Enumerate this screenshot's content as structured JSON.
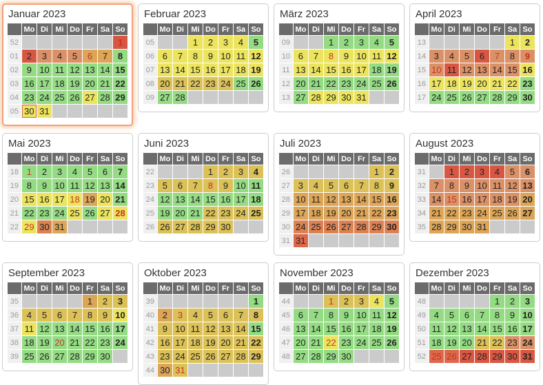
{
  "weekday_headers": [
    "Mo",
    "Di",
    "Mi",
    "Do",
    "Fr",
    "Sa",
    "So"
  ],
  "palette": {
    "g": "#94DB84",
    "y": "#ECE45E",
    "m": "#DBC158",
    "t": "#DCA557",
    "s": "#DB9168",
    "o": "#DB8152",
    "r2": "#DC684C",
    "r": "#D85743"
  },
  "palette_meaning": {
    "g": "green-level",
    "y": "yellow-level",
    "m": "dark-yellow-level",
    "t": "tan-level",
    "s": "salmon-level",
    "o": "orange-level",
    "r2": "orange-red-level",
    "r": "red-level"
  },
  "text_colors": {
    "day": "#222222",
    "holiday": "#C8341A",
    "week_number": "#999999",
    "header_text": "#FFFFFF",
    "title": "#333333"
  },
  "months": [
    {
      "title": "Januar 2023",
      "highlighted": true,
      "weeks": [
        {
          "n": "52",
          "days": [
            "",
            "",
            "",
            "",
            "",
            "",
            "1|r|h"
          ]
        },
        {
          "n": "01",
          "days": [
            "2|r",
            "3|s",
            "4|s",
            "5|s",
            "6|t|h",
            "7|t",
            "8|g"
          ]
        },
        {
          "n": "02",
          "days": [
            "9|g",
            "10|g",
            "11|g",
            "12|g",
            "13|g",
            "14|g",
            "15|g"
          ]
        },
        {
          "n": "03",
          "days": [
            "16|g",
            "17|g",
            "18|g",
            "19|g",
            "20|g",
            "21|g",
            "22|g"
          ]
        },
        {
          "n": "04",
          "days": [
            "23|g",
            "24|g",
            "25|g",
            "26|g",
            "27|y",
            "28|g",
            "29|g"
          ]
        },
        {
          "n": "05",
          "days": [
            "30|y|t",
            "31|y",
            "",
            "",
            "",
            "",
            ""
          ]
        }
      ]
    },
    {
      "title": "Februar 2023",
      "highlighted": false,
      "weeks": [
        {
          "n": "05",
          "days": [
            "",
            "",
            "1|y",
            "2|y",
            "3|y",
            "4|y",
            "5|g"
          ]
        },
        {
          "n": "06",
          "days": [
            "6|y",
            "7|y",
            "8|y",
            "9|y",
            "10|y",
            "11|y",
            "12|y"
          ]
        },
        {
          "n": "07",
          "days": [
            "13|y",
            "14|y",
            "15|y",
            "16|y",
            "17|y",
            "18|y",
            "19|y"
          ]
        },
        {
          "n": "08",
          "days": [
            "20|m",
            "21|m",
            "22|m",
            "23|m",
            "24|m",
            "25|g",
            "26|g"
          ]
        },
        {
          "n": "09",
          "days": [
            "27|g",
            "28|g",
            "",
            "",
            "",
            "",
            ""
          ]
        }
      ]
    },
    {
      "title": "März 2023",
      "highlighted": false,
      "weeks": [
        {
          "n": "09",
          "days": [
            "",
            "",
            "1|g",
            "2|g",
            "3|g",
            "4|g",
            "5|g"
          ]
        },
        {
          "n": "10",
          "days": [
            "6|y",
            "7|y",
            "8|y|h",
            "9|y",
            "10|y",
            "11|y",
            "12|y"
          ]
        },
        {
          "n": "11",
          "days": [
            "13|y",
            "14|y",
            "15|y",
            "16|y",
            "17|y",
            "18|g",
            "19|g"
          ]
        },
        {
          "n": "12",
          "days": [
            "20|g",
            "21|g",
            "22|g",
            "23|g",
            "24|g",
            "25|g",
            "26|g"
          ]
        },
        {
          "n": "13",
          "days": [
            "27|g",
            "28|y",
            "29|y",
            "30|y",
            "31|y",
            "",
            ""
          ]
        }
      ]
    },
    {
      "title": "April 2023",
      "highlighted": false,
      "weeks": [
        {
          "n": "13",
          "days": [
            "",
            "",
            "",
            "",
            "",
            "1|y",
            "2|y"
          ]
        },
        {
          "n": "14",
          "days": [
            "3|s",
            "4|s",
            "5|s",
            "6|r",
            "7|s|h",
            "8|s",
            "9|s|h"
          ]
        },
        {
          "n": "15",
          "days": [
            "10|s|h",
            "11|r",
            "12|s",
            "13|s",
            "14|s",
            "15|s",
            "16|y"
          ]
        },
        {
          "n": "16",
          "days": [
            "17|y",
            "18|y",
            "19|y",
            "20|y",
            "21|y",
            "22|y",
            "23|g"
          ]
        },
        {
          "n": "17",
          "days": [
            "24|g",
            "25|g",
            "26|g",
            "27|g",
            "28|g",
            "29|g",
            "30|g"
          ]
        }
      ]
    },
    {
      "title": "Mai 2023",
      "highlighted": false,
      "weeks": [
        {
          "n": "18",
          "days": [
            "1|g|h",
            "2|g",
            "3|g",
            "4|g",
            "5|g",
            "6|g",
            "7|g"
          ]
        },
        {
          "n": "19",
          "days": [
            "8|g",
            "9|g",
            "10|g",
            "11|g",
            "12|g",
            "13|g",
            "14|g"
          ]
        },
        {
          "n": "20",
          "days": [
            "15|y",
            "16|y",
            "17|y",
            "18|y|h",
            "19|t",
            "20|y",
            "21|g"
          ]
        },
        {
          "n": "21",
          "days": [
            "22|g",
            "23|g",
            "24|g",
            "25|y",
            "26|g",
            "27|y",
            "28|y|h"
          ]
        },
        {
          "n": "22",
          "days": [
            "29|y|h",
            "30|o",
            "31|t",
            "",
            "",
            "",
            ""
          ]
        }
      ]
    },
    {
      "title": "Juni 2023",
      "highlighted": false,
      "weeks": [
        {
          "n": "22",
          "days": [
            "",
            "",
            "",
            "1|m",
            "2|m",
            "3|m",
            "4|m"
          ]
        },
        {
          "n": "23",
          "days": [
            "5|m",
            "6|m",
            "7|m",
            "8|m|h",
            "9|m",
            "10|g",
            "11|g"
          ]
        },
        {
          "n": "24",
          "days": [
            "12|g",
            "13|g",
            "14|g",
            "15|g",
            "16|g",
            "17|g",
            "18|g"
          ]
        },
        {
          "n": "25",
          "days": [
            "19|g",
            "20|g",
            "21|g",
            "22|m",
            "23|m",
            "24|m",
            "25|m"
          ]
        },
        {
          "n": "26",
          "days": [
            "26|m",
            "27|m",
            "28|m",
            "29|m",
            "30|m",
            "",
            ""
          ]
        }
      ]
    },
    {
      "title": "Juli 2023",
      "highlighted": false,
      "weeks": [
        {
          "n": "26",
          "days": [
            "",
            "",
            "",
            "",
            "",
            "1|m",
            "2|m"
          ]
        },
        {
          "n": "27",
          "days": [
            "3|m",
            "4|m",
            "5|m",
            "6|m",
            "7|m",
            "8|m",
            "9|m"
          ]
        },
        {
          "n": "28",
          "days": [
            "10|t",
            "11|t",
            "12|t",
            "13|t",
            "14|t",
            "15|t",
            "16|t"
          ]
        },
        {
          "n": "29",
          "days": [
            "17|t",
            "18|t",
            "19|t",
            "20|t",
            "21|t",
            "22|t",
            "23|t"
          ]
        },
        {
          "n": "30",
          "days": [
            "24|o",
            "25|o",
            "26|o",
            "27|o",
            "28|o",
            "29|o",
            "30|o"
          ]
        },
        {
          "n": "31",
          "days": [
            "31|r2",
            "",
            "",
            "",
            "",
            "",
            ""
          ]
        }
      ]
    },
    {
      "title": "August 2023",
      "highlighted": false,
      "weeks": [
        {
          "n": "31",
          "days": [
            "",
            "1|r",
            "2|r",
            "3|r",
            "4|r",
            "5|s",
            "6|s"
          ]
        },
        {
          "n": "32",
          "days": [
            "7|s",
            "8|s",
            "9|s",
            "10|s",
            "11|s",
            "12|s",
            "13|s"
          ]
        },
        {
          "n": "33",
          "days": [
            "14|s",
            "15|s|h",
            "16|s",
            "17|s",
            "18|s",
            "19|s",
            "20|t"
          ]
        },
        {
          "n": "34",
          "days": [
            "21|t",
            "22|t",
            "23|t",
            "24|t",
            "25|t",
            "26|t",
            "27|t"
          ]
        },
        {
          "n": "35",
          "days": [
            "28|t",
            "29|t",
            "30|t",
            "31|t",
            "",
            "",
            ""
          ]
        }
      ]
    },
    {
      "title": "September 2023",
      "highlighted": false,
      "weeks": [
        {
          "n": "35",
          "days": [
            "",
            "",
            "",
            "",
            "1|t",
            "2|m",
            "3|m"
          ]
        },
        {
          "n": "36",
          "days": [
            "4|m",
            "5|m",
            "6|m",
            "7|m",
            "8|m",
            "9|m",
            "10|y"
          ]
        },
        {
          "n": "37",
          "days": [
            "11|y",
            "12|g",
            "13|g",
            "14|g",
            "15|g",
            "16|g",
            "17|g"
          ]
        },
        {
          "n": "38",
          "days": [
            "18|g",
            "19|g",
            "20|g|h",
            "21|g",
            "22|g",
            "23|g",
            "24|g"
          ]
        },
        {
          "n": "39",
          "days": [
            "25|g",
            "26|g",
            "27|g",
            "28|g",
            "29|g",
            "30|g",
            ""
          ]
        }
      ]
    },
    {
      "title": "Oktober 2023",
      "highlighted": false,
      "weeks": [
        {
          "n": "39",
          "days": [
            "",
            "",
            "",
            "",
            "",
            "",
            "1|g"
          ]
        },
        {
          "n": "40",
          "days": [
            "2|t",
            "3|m|h",
            "4|m",
            "5|m",
            "6|m",
            "7|m",
            "8|m"
          ]
        },
        {
          "n": "41",
          "days": [
            "9|m",
            "10|m",
            "11|m",
            "12|m",
            "13|m",
            "14|m",
            "15|g"
          ]
        },
        {
          "n": "42",
          "days": [
            "16|m",
            "17|m",
            "18|m",
            "19|m",
            "20|m",
            "21|m",
            "22|m"
          ]
        },
        {
          "n": "43",
          "days": [
            "23|m",
            "24|m",
            "25|m",
            "26|m",
            "27|m",
            "28|m",
            "29|m"
          ]
        },
        {
          "n": "44",
          "days": [
            "30|t",
            "31|m|h",
            "",
            "",
            "",
            "",
            ""
          ]
        }
      ]
    },
    {
      "title": "November 2023",
      "highlighted": false,
      "weeks": [
        {
          "n": "44",
          "days": [
            "",
            "",
            "1|m|h",
            "2|m",
            "3|m",
            "4|y",
            "5|g"
          ]
        },
        {
          "n": "45",
          "days": [
            "6|g",
            "7|g",
            "8|g",
            "9|g",
            "10|g",
            "11|g",
            "12|g"
          ]
        },
        {
          "n": "46",
          "days": [
            "13|g",
            "14|g",
            "15|g",
            "16|g",
            "17|g",
            "18|g",
            "19|g"
          ]
        },
        {
          "n": "47",
          "days": [
            "20|g",
            "21|g",
            "22|y|h",
            "23|g",
            "24|g",
            "25|g",
            "26|g"
          ]
        },
        {
          "n": "48",
          "days": [
            "27|g",
            "28|g",
            "29|g",
            "30|g",
            "",
            "",
            ""
          ]
        }
      ]
    },
    {
      "title": "Dezember 2023",
      "highlighted": false,
      "weeks": [
        {
          "n": "48",
          "days": [
            "",
            "",
            "",
            "",
            "1|g",
            "2|g",
            "3|g"
          ]
        },
        {
          "n": "49",
          "days": [
            "4|g",
            "5|g",
            "6|g",
            "7|g",
            "8|g",
            "9|g",
            "10|g"
          ]
        },
        {
          "n": "50",
          "days": [
            "11|g",
            "12|g",
            "13|g",
            "14|g",
            "15|g",
            "16|g",
            "17|g"
          ]
        },
        {
          "n": "51",
          "days": [
            "18|g",
            "19|g",
            "20|g",
            "21|m",
            "22|m",
            "23|s",
            "24|s"
          ]
        },
        {
          "n": "52",
          "days": [
            "25|r2|h",
            "26|r2|h",
            "27|r",
            "28|r",
            "29|r",
            "30|r",
            "31|r"
          ]
        }
      ]
    }
  ]
}
